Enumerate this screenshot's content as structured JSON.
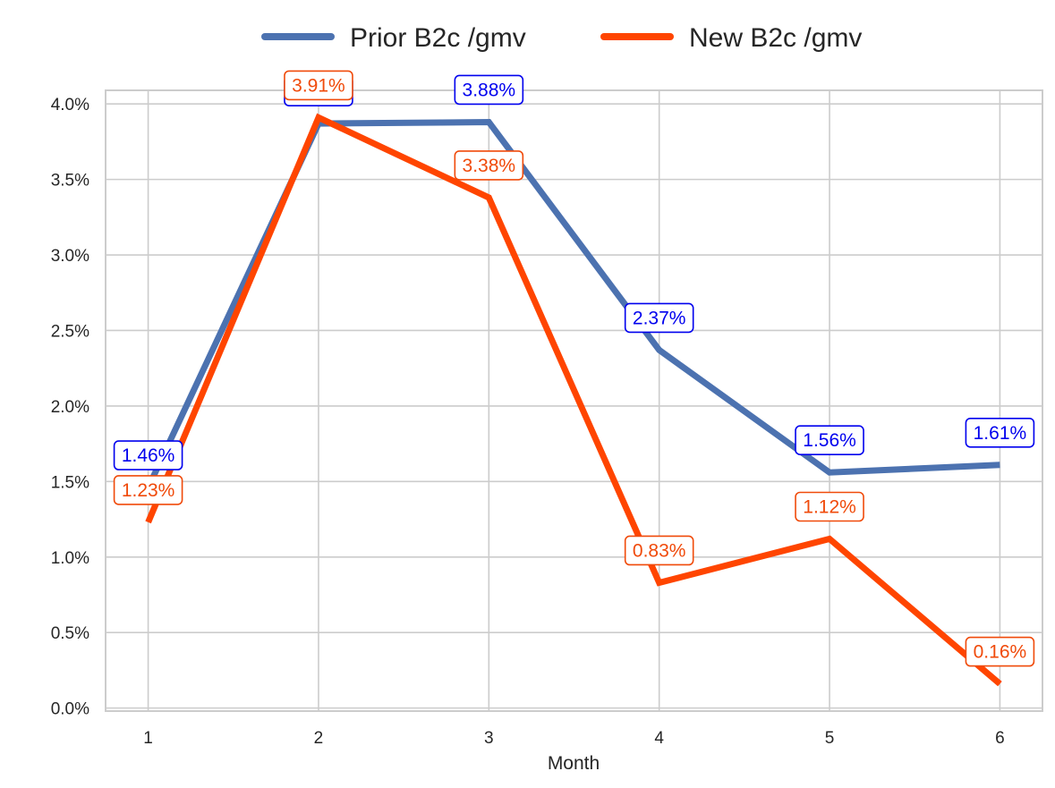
{
  "chart_data": {
    "type": "line",
    "title": "",
    "xlabel": "Month",
    "ylabel": "",
    "x": [
      1,
      2,
      3,
      4,
      5,
      6
    ],
    "x_tick_labels": [
      "1",
      "2",
      "3",
      "4",
      "5",
      "6"
    ],
    "y_tick_labels": [
      "0.0%",
      "0.5%",
      "1.0%",
      "1.5%",
      "2.0%",
      "2.5%",
      "3.0%",
      "3.5%",
      "4.0%"
    ],
    "y_ticks": [
      0,
      0.5,
      1.0,
      1.5,
      2.0,
      2.5,
      3.0,
      3.5,
      4.0
    ],
    "xlim": [
      0.75,
      6.25
    ],
    "ylim": [
      -0.02,
      4.09
    ],
    "grid": true,
    "legend_position": "top-center",
    "series": [
      {
        "name": "Prior B2c /gmv",
        "color": "#4C72B0",
        "label_color": "#0000EE",
        "values": [
          1.46,
          3.87,
          3.88,
          2.37,
          1.56,
          1.61
        ],
        "labels": [
          "1.46%",
          "3.87%",
          "3.88%",
          "2.37%",
          "1.56%",
          "1.61%"
        ]
      },
      {
        "name": "New B2c /gmv",
        "color": "#FF4500",
        "label_color": "#F04A0A",
        "values": [
          1.23,
          3.91,
          3.38,
          0.83,
          1.12,
          0.16
        ],
        "labels": [
          "1.23%",
          "3.91%",
          "3.38%",
          "0.83%",
          "1.12%",
          "0.16%"
        ]
      }
    ]
  }
}
